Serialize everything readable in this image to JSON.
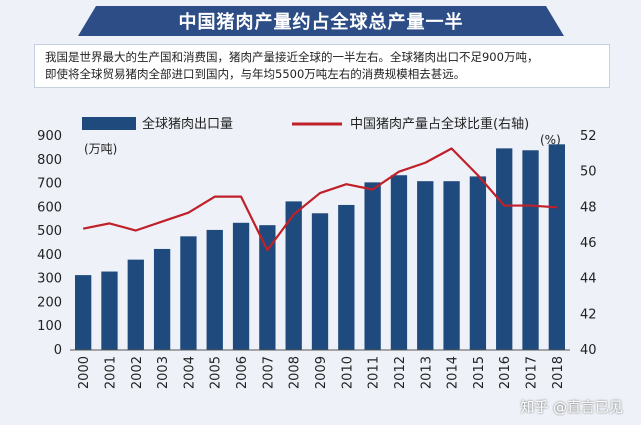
{
  "title": "中国猪肉产量约占全球总产量一半",
  "description": {
    "line1": "我国是世界最大的生产国和消费国，猪肉产量接近全球的一半左右。全球猪肉出口不足900万吨，",
    "line2": "即使将全球贸易猪肉全部进口到国内，与年均5500万吨左右的消费规模相去甚远。"
  },
  "watermark": "知乎 @直言已见",
  "colors": {
    "bar": "#1f4a7d",
    "line": "#c0202a",
    "banner": "#2d4d86"
  },
  "chart_data": {
    "type": "bar",
    "categories": [
      "2000",
      "2001",
      "2002",
      "2003",
      "2004",
      "2005",
      "2006",
      "2007",
      "2008",
      "2009",
      "2010",
      "2011",
      "2012",
      "2013",
      "2014",
      "2015",
      "2016",
      "2017",
      "2018"
    ],
    "series": [
      {
        "name": "全球猪肉出口量",
        "type": "bar",
        "axis": "left",
        "values": [
          315,
          330,
          380,
          425,
          478,
          505,
          535,
          525,
          625,
          575,
          610,
          705,
          735,
          710,
          710,
          730,
          848,
          840,
          865
        ]
      },
      {
        "name": "中国猪肉产量占全球比重(右轴)",
        "type": "line",
        "axis": "right",
        "values": [
          46.8,
          47.1,
          46.7,
          47.2,
          47.7,
          48.6,
          48.6,
          45.6,
          47.6,
          48.8,
          49.3,
          49.0,
          50.0,
          50.5,
          51.3,
          49.8,
          48.1,
          48.1,
          48.0
        ]
      }
    ],
    "ylabel": "(万吨)",
    "y2label": "(%)",
    "ylim": [
      0,
      900
    ],
    "y2lim": [
      40,
      52
    ],
    "yticks": [
      0,
      100,
      200,
      300,
      400,
      500,
      600,
      700,
      800,
      900
    ],
    "y2ticks": [
      40,
      42,
      44,
      46,
      48,
      50,
      52
    ],
    "legend_position": "top",
    "grid": false
  }
}
